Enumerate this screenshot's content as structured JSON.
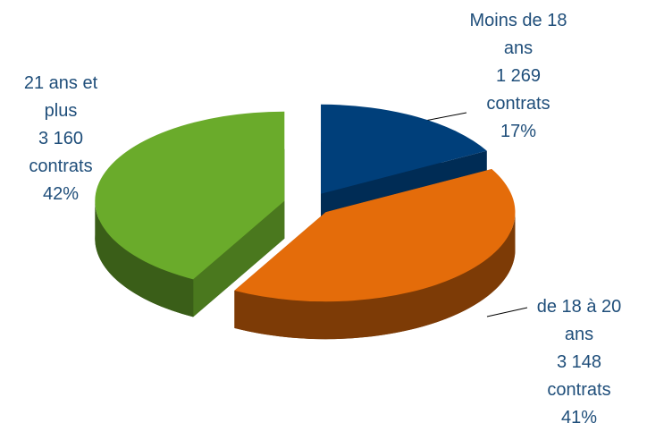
{
  "chart_data": {
    "type": "pie",
    "categories": [
      "Moins de 18 ans",
      "de 18 à 20 ans",
      "21 ans et plus"
    ],
    "values": [
      17,
      41,
      42
    ],
    "value_labels": [
      "17%",
      "41%",
      "42%"
    ],
    "counts": [
      1269,
      3148,
      3160
    ],
    "count_labels": [
      "1 269",
      "3 148",
      "3 160"
    ],
    "count_unit": "contrats",
    "colors": [
      "#003f7a",
      "#e46c0a",
      "#6aab2b"
    ],
    "exploded": true,
    "three_d": true
  }
}
